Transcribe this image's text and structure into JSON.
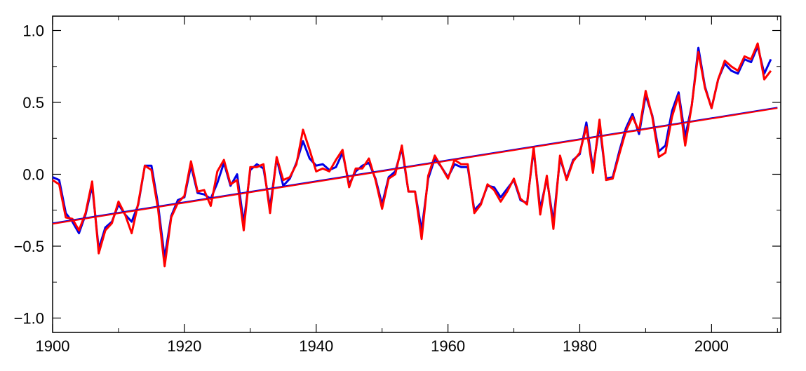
{
  "chart_data": {
    "type": "line",
    "title": "",
    "xlabel": "",
    "ylabel": "",
    "xlim": [
      1900,
      2010
    ],
    "ylim": [
      -1.1,
      1.1
    ],
    "grid": false,
    "legend": "none",
    "x_ticks": [
      1900,
      1920,
      1940,
      1960,
      1980,
      2000
    ],
    "x_tick_labels": [
      "1900",
      "1920",
      "1940",
      "1960",
      "1980",
      "2000"
    ],
    "y_ticks": [
      -1.0,
      -0.5,
      0.0,
      0.5,
      1.0
    ],
    "y_tick_labels": [
      "−1.0",
      "−0.5",
      "0.0",
      "0.5",
      "1.0"
    ],
    "x": [
      1900,
      1901,
      1902,
      1903,
      1904,
      1905,
      1906,
      1907,
      1908,
      1909,
      1910,
      1911,
      1912,
      1913,
      1914,
      1915,
      1916,
      1917,
      1918,
      1919,
      1920,
      1921,
      1922,
      1923,
      1924,
      1925,
      1926,
      1927,
      1928,
      1929,
      1930,
      1931,
      1932,
      1933,
      1934,
      1935,
      1936,
      1937,
      1938,
      1939,
      1940,
      1941,
      1942,
      1943,
      1944,
      1945,
      1946,
      1947,
      1948,
      1949,
      1950,
      1951,
      1952,
      1953,
      1954,
      1955,
      1956,
      1957,
      1958,
      1959,
      1960,
      1961,
      1962,
      1963,
      1964,
      1965,
      1966,
      1967,
      1968,
      1969,
      1970,
      1971,
      1972,
      1973,
      1974,
      1975,
      1976,
      1977,
      1978,
      1979,
      1980,
      1981,
      1982,
      1983,
      1984,
      1985,
      1986,
      1987,
      1988,
      1989,
      1990,
      1991,
      1992,
      1993,
      1994,
      1995,
      1996,
      1997,
      1998,
      1999,
      2000,
      2001,
      2002,
      2003,
      2004,
      2005,
      2006,
      2007,
      2008,
      2009
    ],
    "series": [
      {
        "color": "#0000e6",
        "values": [
          -0.02,
          -0.04,
          -0.27,
          -0.33,
          -0.41,
          -0.28,
          -0.08,
          -0.52,
          -0.37,
          -0.33,
          -0.21,
          -0.28,
          -0.33,
          -0.21,
          0.06,
          0.06,
          -0.21,
          -0.58,
          -0.29,
          -0.18,
          -0.16,
          0.06,
          -0.13,
          -0.14,
          -0.17,
          -0.06,
          0.08,
          -0.08,
          0.0,
          -0.34,
          0.03,
          0.07,
          0.04,
          -0.23,
          0.11,
          -0.08,
          -0.03,
          0.08,
          0.23,
          0.11,
          0.06,
          0.07,
          0.03,
          0.05,
          0.15,
          -0.07,
          0.02,
          0.06,
          0.08,
          -0.03,
          -0.21,
          -0.02,
          0.02,
          0.18,
          -0.12,
          -0.12,
          -0.39,
          -0.03,
          0.11,
          0.05,
          -0.02,
          0.07,
          0.05,
          0.05,
          -0.25,
          -0.2,
          -0.08,
          -0.09,
          -0.16,
          -0.1,
          -0.04,
          -0.18,
          -0.2,
          0.17,
          -0.24,
          -0.03,
          -0.33,
          0.11,
          -0.03,
          0.1,
          0.14,
          0.36,
          0.04,
          0.34,
          -0.03,
          -0.02,
          0.16,
          0.32,
          0.42,
          0.28,
          0.55,
          0.41,
          0.16,
          0.2,
          0.44,
          0.57,
          0.26,
          0.48,
          0.88,
          0.61,
          0.46,
          0.66,
          0.77,
          0.72,
          0.7,
          0.8,
          0.78,
          0.89,
          0.7,
          0.8
        ]
      },
      {
        "color": "#ff0000",
        "values": [
          -0.04,
          -0.07,
          -0.3,
          -0.31,
          -0.39,
          -0.27,
          -0.05,
          -0.55,
          -0.39,
          -0.34,
          -0.19,
          -0.28,
          -0.41,
          -0.2,
          0.06,
          0.03,
          -0.24,
          -0.64,
          -0.3,
          -0.2,
          -0.15,
          0.09,
          -0.12,
          -0.11,
          -0.22,
          0.02,
          0.1,
          -0.07,
          -0.04,
          -0.39,
          0.05,
          0.05,
          0.07,
          -0.27,
          0.12,
          -0.04,
          -0.02,
          0.07,
          0.31,
          0.17,
          0.02,
          0.04,
          0.02,
          0.1,
          0.17,
          -0.09,
          0.04,
          0.04,
          0.11,
          -0.04,
          -0.24,
          -0.03,
          0.0,
          0.2,
          -0.12,
          -0.12,
          -0.45,
          -0.01,
          0.13,
          0.05,
          -0.03,
          0.1,
          0.07,
          0.07,
          -0.27,
          -0.21,
          -0.07,
          -0.11,
          -0.19,
          -0.12,
          -0.03,
          -0.17,
          -0.21,
          0.19,
          -0.28,
          -0.01,
          -0.38,
          0.13,
          -0.04,
          0.09,
          0.15,
          0.33,
          0.01,
          0.38,
          -0.04,
          -0.03,
          0.14,
          0.3,
          0.4,
          0.3,
          0.58,
          0.4,
          0.12,
          0.15,
          0.4,
          0.55,
          0.2,
          0.48,
          0.85,
          0.6,
          0.46,
          0.66,
          0.79,
          0.75,
          0.72,
          0.82,
          0.8,
          0.91,
          0.66,
          0.72
        ]
      },
      {
        "color": "#0000e6",
        "values": [
          -0.34,
          0.464
        ],
        "x": [
          1900,
          2010
        ]
      },
      {
        "color": "#ff0000",
        "values": [
          -0.345,
          0.46
        ],
        "x": [
          1900,
          2010
        ]
      }
    ]
  }
}
